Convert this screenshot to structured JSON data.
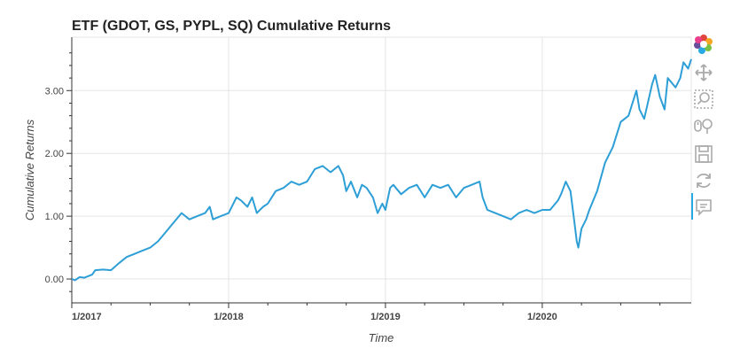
{
  "chart_data": {
    "type": "line",
    "title": "ETF (GDOT, GS, PYPL, SQ) Cumulative Returns",
    "xlabel": "Time",
    "ylabel": "Cumulative Returns",
    "x_tick_labels": [
      "1/2017",
      "1/2018",
      "1/2019",
      "1/2020"
    ],
    "x_tick_values": [
      2017.0,
      2018.0,
      2019.0,
      2020.0
    ],
    "y_tick_labels": [
      "0.00",
      "1.00",
      "2.00",
      "3.00"
    ],
    "y_tick_values": [
      0,
      1,
      2,
      3
    ],
    "xlim": [
      2017.0,
      2020.95
    ],
    "ylim": [
      -0.38,
      3.85
    ],
    "grid": true,
    "line_color": "#2d9fd6",
    "series": [
      {
        "x": [
          2017.0,
          2017.02,
          2017.05,
          2017.08,
          2017.1,
          2017.13,
          2017.15,
          2017.2,
          2017.25,
          2017.3,
          2017.35,
          2017.4,
          2017.45,
          2017.5,
          2017.55,
          2017.6,
          2017.65,
          2017.7,
          2017.75,
          2017.8,
          2017.85,
          2017.88,
          2017.9,
          2017.95,
          2018.0,
          2018.05,
          2018.08,
          2018.12,
          2018.15,
          2018.18,
          2018.22,
          2018.25,
          2018.3,
          2018.35,
          2018.4,
          2018.45,
          2018.5,
          2018.55,
          2018.6,
          2018.65,
          2018.7,
          2018.73,
          2018.75,
          2018.78,
          2018.82,
          2018.85,
          2018.88,
          2018.92,
          2018.95,
          2018.98,
          2019.0,
          2019.03,
          2019.05,
          2019.1,
          2019.15,
          2019.2,
          2019.25,
          2019.3,
          2019.35,
          2019.4,
          2019.45,
          2019.5,
          2019.55,
          2019.6,
          2019.62,
          2019.65,
          2019.7,
          2019.75,
          2019.8,
          2019.85,
          2019.9,
          2019.95,
          2020.0,
          2020.05,
          2020.1,
          2020.12,
          2020.15,
          2020.18,
          2020.2,
          2020.22,
          2020.23,
          2020.25,
          2020.28,
          2020.3,
          2020.35,
          2020.4,
          2020.45,
          2020.5,
          2020.55,
          2020.6,
          2020.62,
          2020.65,
          2020.7,
          2020.72,
          2020.75,
          2020.78,
          2020.8,
          2020.85,
          2020.88,
          2020.9,
          2020.93,
          2020.95
        ],
        "values": [
          0.0,
          -0.02,
          0.03,
          0.02,
          0.04,
          0.07,
          0.14,
          0.15,
          0.14,
          0.25,
          0.35,
          0.4,
          0.45,
          0.5,
          0.6,
          0.75,
          0.9,
          1.05,
          0.95,
          1.0,
          1.05,
          1.15,
          0.95,
          1.0,
          1.05,
          1.3,
          1.25,
          1.15,
          1.3,
          1.05,
          1.15,
          1.2,
          1.4,
          1.45,
          1.55,
          1.5,
          1.55,
          1.75,
          1.8,
          1.7,
          1.8,
          1.65,
          1.4,
          1.55,
          1.3,
          1.5,
          1.45,
          1.3,
          1.05,
          1.2,
          1.1,
          1.45,
          1.5,
          1.35,
          1.45,
          1.5,
          1.3,
          1.5,
          1.45,
          1.5,
          1.3,
          1.45,
          1.5,
          1.55,
          1.3,
          1.1,
          1.05,
          1.0,
          0.95,
          1.05,
          1.1,
          1.05,
          1.1,
          1.1,
          1.25,
          1.35,
          1.55,
          1.4,
          1.0,
          0.6,
          0.5,
          0.8,
          0.95,
          1.1,
          1.4,
          1.85,
          2.1,
          2.5,
          2.6,
          3.0,
          2.7,
          2.55,
          3.1,
          3.25,
          2.9,
          2.7,
          3.2,
          3.05,
          3.2,
          3.45,
          3.35,
          3.5
        ]
      }
    ]
  },
  "toolbar": {
    "tools": [
      "bokeh-logo-icon",
      "pan-icon",
      "box-zoom-icon",
      "wheel-zoom-icon",
      "save-icon",
      "reset-icon",
      "hover-icon"
    ]
  }
}
